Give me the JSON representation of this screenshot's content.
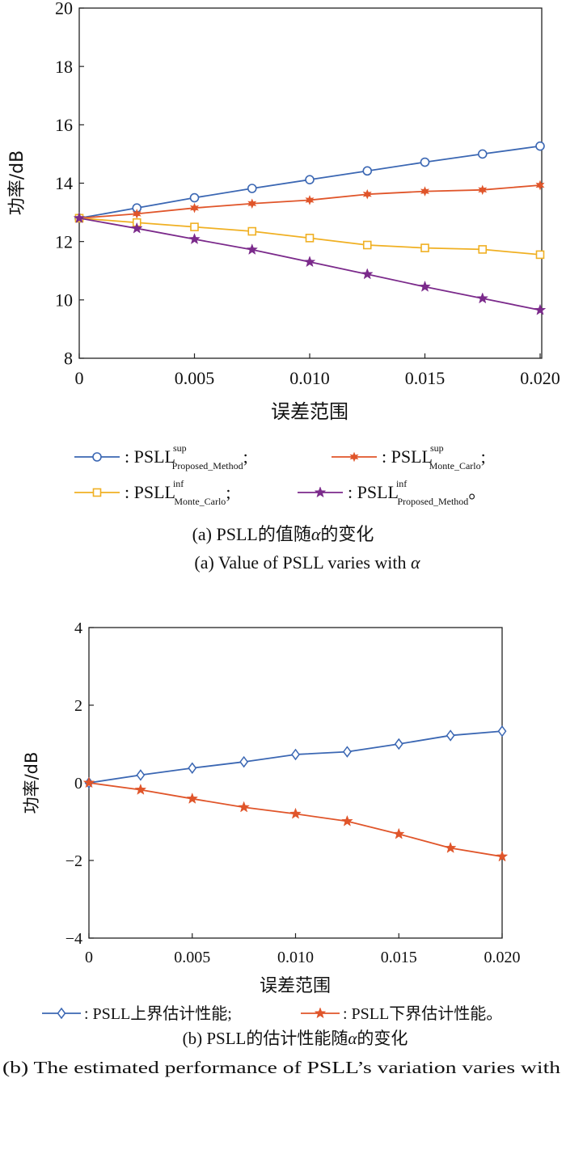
{
  "chart_data": [
    {
      "type": "line",
      "ylabel": "功率/dB",
      "xlabel": "误差范围",
      "x": [
        0,
        0.0025,
        0.005,
        0.0075,
        0.01,
        0.0125,
        0.015,
        0.0175,
        0.02
      ],
      "xlim": [
        0,
        0.02
      ],
      "ylim": [
        8,
        20
      ],
      "xticks": [
        "0",
        "0.005",
        "0.010",
        "0.015",
        "0.020"
      ],
      "yticks": [
        "8",
        "10",
        "12",
        "14",
        "16",
        "18",
        "20"
      ],
      "grid": false,
      "colors": [
        "#3b67b3",
        "#e0552a",
        "#f0b023",
        "#7b2a8b"
      ],
      "markers": [
        "circle",
        "star6",
        "square",
        "star5"
      ],
      "series": [
        {
          "values": [
            12.8,
            13.15,
            13.5,
            13.82,
            14.12,
            14.42,
            14.72,
            15.0,
            15.27
          ]
        },
        {
          "values": [
            12.8,
            12.95,
            13.15,
            13.3,
            13.42,
            13.62,
            13.72,
            13.77,
            13.93
          ]
        },
        {
          "values": [
            12.8,
            12.65,
            12.5,
            12.35,
            12.12,
            11.88,
            11.78,
            11.73,
            11.55
          ]
        },
        {
          "values": [
            12.8,
            12.45,
            12.08,
            11.72,
            11.3,
            10.88,
            10.45,
            10.05,
            9.65
          ]
        }
      ],
      "legend": [
        {
          "prefix": ": PSLL",
          "sup": "sup",
          "sub": "Proposed_Method",
          "suffix": ";"
        },
        {
          "prefix": ": PSLL",
          "sup": "sup",
          "sub": "Monte_Carlo",
          "suffix": ";"
        },
        {
          "prefix": ": PSLL",
          "sup": "inf",
          "sub": "Monte_Carlo",
          "suffix": ";"
        },
        {
          "prefix": ": PSLL",
          "sup": "inf",
          "sub": "Proposed_Method",
          "suffix": "。"
        }
      ],
      "caption_cn_pre": "(a) PSLL的值随",
      "caption_cn_var": "α",
      "caption_cn_post": "的变化",
      "caption_en_pre": "(a) Value of PSLL varies with ",
      "caption_en_var": "α"
    },
    {
      "type": "line",
      "ylabel": "功率/dB",
      "xlabel": "误差范围",
      "x": [
        0,
        0.0025,
        0.005,
        0.0075,
        0.01,
        0.0125,
        0.015,
        0.0175,
        0.02
      ],
      "xlim": [
        0,
        0.02
      ],
      "ylim": [
        -4,
        4
      ],
      "xticks": [
        "0",
        "0.005",
        "0.010",
        "0.015",
        "0.020"
      ],
      "yticks": [
        "−4",
        "−2",
        "0",
        "2",
        "4"
      ],
      "grid": false,
      "colors": [
        "#3b67b3",
        "#e0552a"
      ],
      "markers": [
        "diamond",
        "star5"
      ],
      "series": [
        {
          "values": [
            0,
            0.2,
            0.38,
            0.54,
            0.73,
            0.8,
            1.0,
            1.22,
            1.33
          ]
        },
        {
          "values": [
            0,
            -0.18,
            -0.41,
            -0.63,
            -0.8,
            -0.99,
            -1.32,
            -1.68,
            -1.9
          ]
        }
      ],
      "legend": [
        {
          "prefix": ": PSLL上界估计性能;",
          "suffix": ""
        },
        {
          "prefix": ": PSLL下界估计性能。",
          "suffix": ""
        }
      ],
      "caption_cn_pre": "(b) PSLL的估计性能随",
      "caption_cn_var": "α",
      "caption_cn_post": "的变化",
      "caption_en_pre": "(b) The estimated performance of PSLL’s variation varies with",
      "caption_en_var": ""
    }
  ]
}
